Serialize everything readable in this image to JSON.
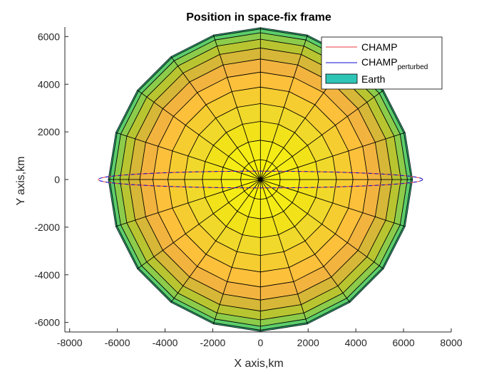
{
  "chart_data": {
    "type": "line",
    "title": "Position in space-fix frame",
    "xlabel": "X axis,km",
    "ylabel": "Y axis,km",
    "xlim": [
      -8200,
      8000
    ],
    "ylim": [
      -6400,
      6400
    ],
    "xticks": [
      -8000,
      -6000,
      -4000,
      -2000,
      0,
      2000,
      4000,
      6000,
      8000
    ],
    "yticks": [
      -6000,
      -4000,
      -2000,
      0,
      2000,
      4000,
      6000
    ],
    "xtick_labels": [
      "-8000",
      "-6000",
      "-4000",
      "-2000",
      "0",
      "2000",
      "4000",
      "6000",
      "8000"
    ],
    "ytick_labels": [
      "-6000",
      "-4000",
      "-2000",
      "0",
      "2000",
      "4000",
      "6000"
    ],
    "grid": false,
    "legend_position": "top-right",
    "series": [
      {
        "name": "CHAMP",
        "kind": "ellipse",
        "color": "#e8383d",
        "center": [
          0,
          0
        ],
        "semi_x": 6800,
        "semi_y": 350
      },
      {
        "name": "CHAMP",
        "name_subscript": "perturbed",
        "kind": "ellipse",
        "color": "#0b0bd0",
        "center": [
          0,
          0
        ],
        "semi_x": 6800,
        "semi_y": 350
      },
      {
        "name": "Earth",
        "kind": "sphere-surface",
        "radius": 6378,
        "segments": 20,
        "color": "#2ec4b6",
        "band_colors": [
          "#f9f20e",
          "#f5ec16",
          "#f2e21a",
          "#f0d92a",
          "#f6cd30",
          "#fdc03b",
          "#f2b43f",
          "#d6b737",
          "#b8c531",
          "#8ccc4a",
          "#5ccd6b",
          "#35c48a"
        ]
      }
    ]
  }
}
